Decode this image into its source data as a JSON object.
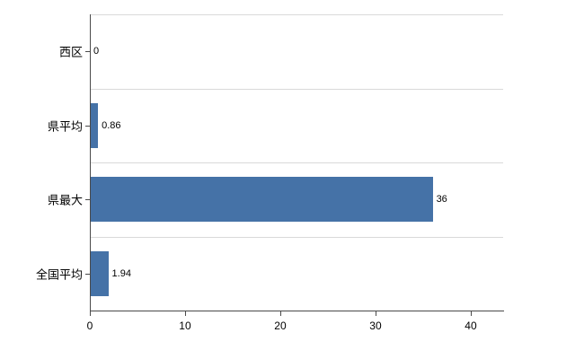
{
  "chart_data": {
    "type": "bar",
    "orientation": "horizontal",
    "title": "",
    "categories": [
      "西区",
      "県平均",
      "県最大",
      "全国平均"
    ],
    "values": [
      0,
      0.86,
      36,
      1.94
    ],
    "value_labels": [
      "0",
      "0.86",
      "36",
      "1.94"
    ],
    "x_tick_values": [
      0,
      10,
      20,
      30,
      40
    ],
    "x_tick_labels": [
      "0",
      "10",
      "20",
      "30",
      "40"
    ],
    "xlim": [
      0,
      43.4
    ],
    "ylabel": "",
    "xlabel": "",
    "grid": "horizontal-category-gridlines",
    "legend": "none",
    "bar_color": "#4572a7",
    "gridline_color": "#d9d9d9",
    "axis_color": "#4a4a4a",
    "background_color": "#ffffff"
  }
}
